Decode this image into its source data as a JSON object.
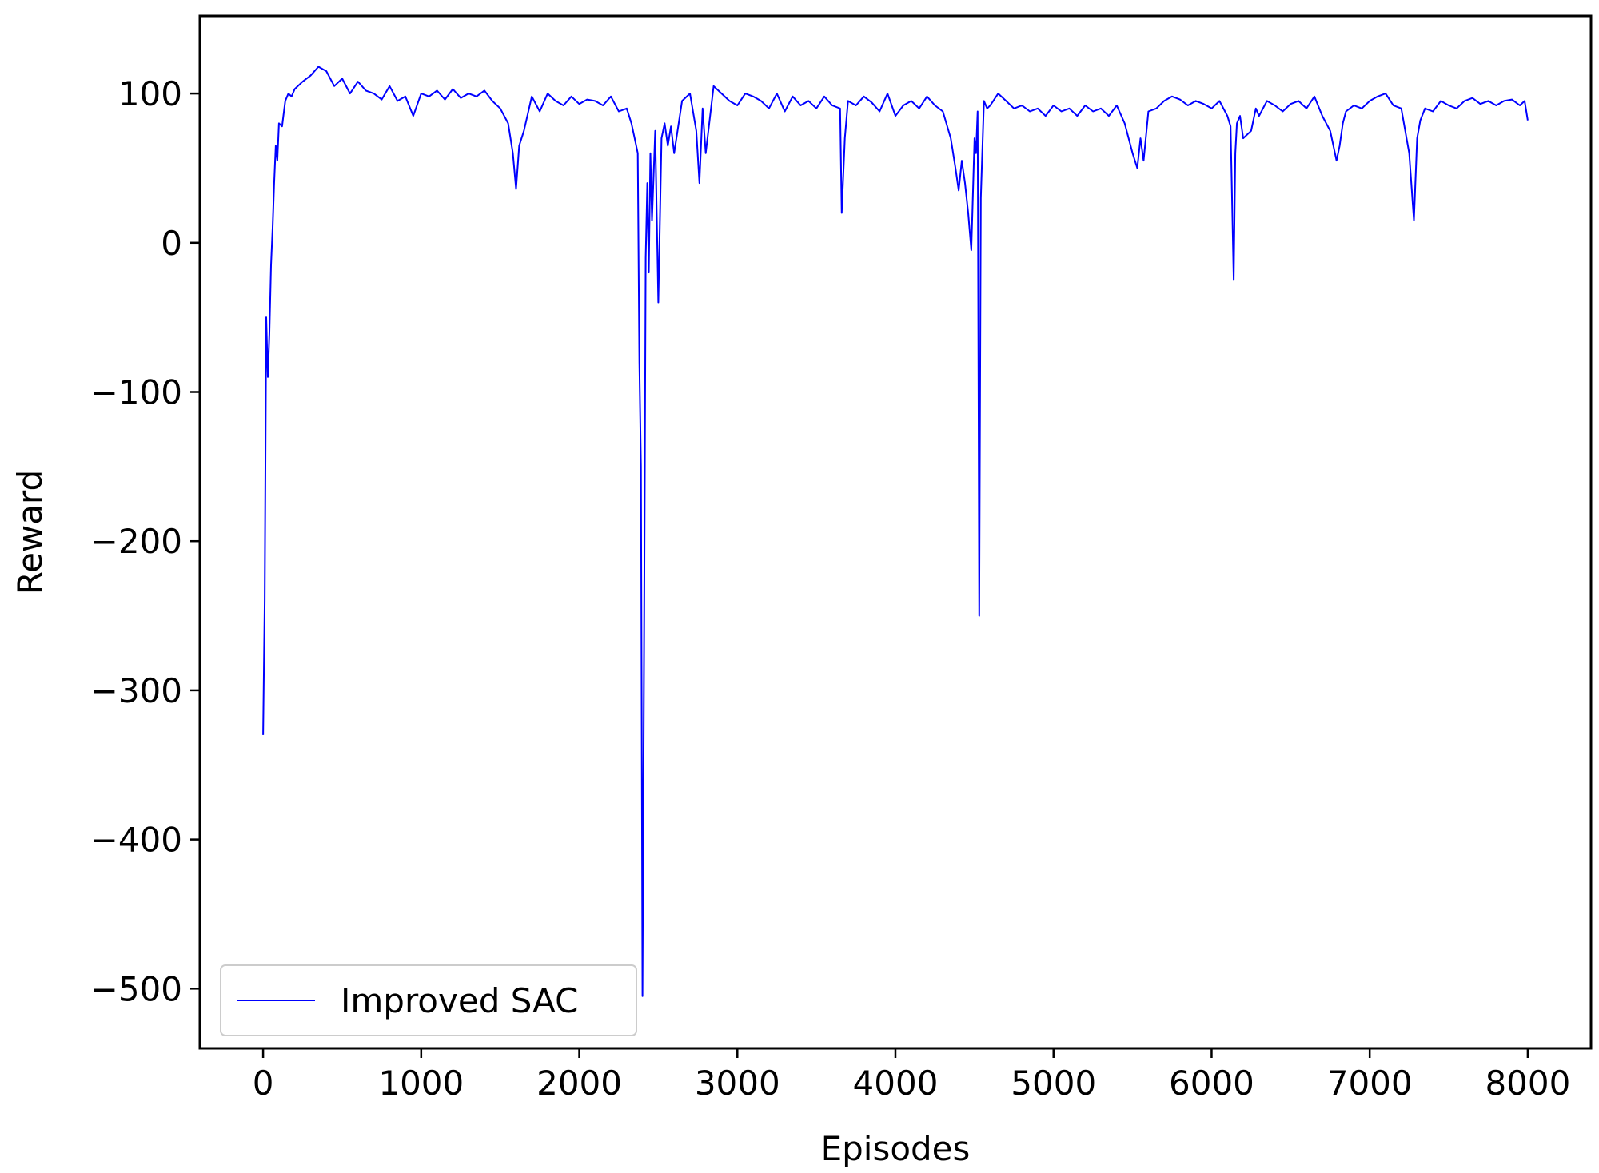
{
  "chart_data": {
    "type": "line",
    "title": "",
    "xlabel": "Episodes",
    "ylabel": "Reward",
    "xlim": [
      -400,
      8400
    ],
    "ylim": [
      -540,
      152
    ],
    "x_ticks": [
      0,
      1000,
      2000,
      3000,
      4000,
      5000,
      6000,
      7000,
      8000
    ],
    "y_ticks": [
      100,
      0,
      -100,
      -200,
      -300,
      -400,
      -500
    ],
    "x_tick_labels": [
      "0",
      "1000",
      "2000",
      "3000",
      "4000",
      "5000",
      "6000",
      "7000",
      "8000"
    ],
    "y_tick_labels": [
      "100",
      "0",
      "−100",
      "−200",
      "−300",
      "−400",
      "−500"
    ],
    "grid": false,
    "legend": {
      "position": "lower-left",
      "entries": [
        "Improved SAC"
      ]
    },
    "series": [
      {
        "name": "Improved SAC",
        "color": "#0000ff",
        "x": [
          0,
          10,
          20,
          30,
          40,
          50,
          60,
          70,
          80,
          90,
          100,
          120,
          140,
          160,
          180,
          200,
          250,
          300,
          350,
          400,
          450,
          500,
          550,
          600,
          650,
          700,
          750,
          800,
          850,
          900,
          950,
          1000,
          1050,
          1100,
          1150,
          1200,
          1250,
          1300,
          1350,
          1400,
          1450,
          1500,
          1550,
          1580,
          1600,
          1620,
          1650,
          1700,
          1750,
          1800,
          1850,
          1900,
          1950,
          2000,
          2050,
          2100,
          2150,
          2200,
          2250,
          2300,
          2330,
          2350,
          2370,
          2380,
          2390,
          2400,
          2410,
          2420,
          2430,
          2440,
          2450,
          2460,
          2480,
          2500,
          2520,
          2540,
          2560,
          2580,
          2600,
          2650,
          2700,
          2740,
          2760,
          2780,
          2800,
          2850,
          2900,
          2950,
          3000,
          3050,
          3100,
          3150,
          3200,
          3250,
          3300,
          3350,
          3400,
          3450,
          3500,
          3550,
          3600,
          3650,
          3660,
          3680,
          3700,
          3750,
          3800,
          3850,
          3900,
          3950,
          4000,
          4050,
          4100,
          4150,
          4200,
          4250,
          4300,
          4350,
          4380,
          4400,
          4420,
          4440,
          4460,
          4480,
          4500,
          4510,
          4520,
          4530,
          4540,
          4560,
          4580,
          4600,
          4650,
          4700,
          4750,
          4800,
          4850,
          4900,
          4950,
          5000,
          5050,
          5100,
          5150,
          5200,
          5250,
          5300,
          5350,
          5400,
          5450,
          5500,
          5530,
          5550,
          5570,
          5600,
          5650,
          5700,
          5750,
          5800,
          5850,
          5900,
          5950,
          6000,
          6050,
          6100,
          6120,
          6140,
          6150,
          6160,
          6180,
          6200,
          6250,
          6280,
          6300,
          6350,
          6400,
          6450,
          6500,
          6550,
          6600,
          6650,
          6700,
          6750,
          6790,
          6810,
          6830,
          6850,
          6900,
          6950,
          7000,
          7050,
          7100,
          7150,
          7200,
          7250,
          7280,
          7300,
          7320,
          7350,
          7400,
          7450,
          7500,
          7550,
          7600,
          7650,
          7700,
          7750,
          7800,
          7850,
          7900,
          7950,
          7980,
          8000
        ],
        "y": [
          -330,
          -240,
          -50,
          -90,
          -60,
          -15,
          10,
          40,
          65,
          55,
          80,
          78,
          95,
          100,
          98,
          103,
          108,
          112,
          118,
          115,
          105,
          110,
          100,
          108,
          102,
          100,
          96,
          105,
          95,
          98,
          85,
          100,
          98,
          102,
          96,
          103,
          97,
          100,
          98,
          102,
          95,
          90,
          80,
          60,
          36,
          65,
          75,
          98,
          88,
          100,
          95,
          92,
          98,
          93,
          96,
          95,
          92,
          98,
          88,
          90,
          80,
          70,
          60,
          -80,
          -150,
          -505,
          -270,
          -10,
          40,
          -20,
          60,
          15,
          75,
          -40,
          70,
          80,
          65,
          78,
          60,
          95,
          100,
          75,
          40,
          90,
          60,
          105,
          100,
          95,
          92,
          100,
          98,
          95,
          90,
          100,
          88,
          98,
          92,
          95,
          90,
          98,
          92,
          90,
          20,
          70,
          95,
          92,
          98,
          94,
          88,
          100,
          85,
          92,
          95,
          90,
          98,
          92,
          88,
          70,
          50,
          35,
          55,
          40,
          20,
          -5,
          70,
          60,
          88,
          -250,
          30,
          95,
          90,
          92,
          100,
          95,
          90,
          92,
          88,
          90,
          85,
          92,
          88,
          90,
          85,
          92,
          88,
          90,
          85,
          92,
          80,
          60,
          50,
          70,
          55,
          88,
          90,
          95,
          98,
          96,
          92,
          95,
          93,
          90,
          95,
          85,
          78,
          -25,
          60,
          80,
          85,
          70,
          75,
          90,
          85,
          95,
          92,
          88,
          93,
          95,
          90,
          98,
          85,
          75,
          55,
          65,
          80,
          88,
          92,
          90,
          95,
          98,
          100,
          92,
          90,
          60,
          15,
          70,
          82,
          90,
          88,
          95,
          92,
          90,
          95,
          97,
          93,
          95,
          92,
          95,
          96,
          92,
          95,
          82
        ]
      }
    ]
  }
}
